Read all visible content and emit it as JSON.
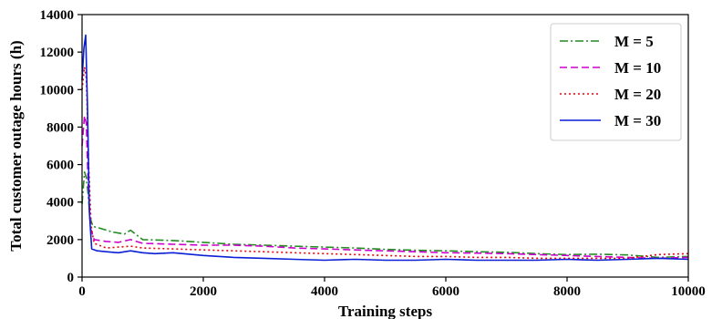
{
  "chart_data": {
    "type": "line",
    "title": "",
    "xlabel": "Training steps",
    "ylabel": "Total customer outage hours (h)",
    "xlim": [
      0,
      10000
    ],
    "ylim": [
      0,
      14000
    ],
    "xticks": [
      0,
      2000,
      4000,
      6000,
      8000,
      10000
    ],
    "yticks": [
      0,
      2000,
      4000,
      6000,
      8000,
      10000,
      12000,
      14000
    ],
    "grid": false,
    "legend_position": "top-right",
    "series": [
      {
        "name": "M = 5",
        "color": "#228B22",
        "dash": "dashdot",
        "points": [
          [
            0,
            3900
          ],
          [
            40,
            5600
          ],
          [
            70,
            5300
          ],
          [
            100,
            4400
          ],
          [
            130,
            3200
          ],
          [
            180,
            2700
          ],
          [
            300,
            2600
          ],
          [
            500,
            2400
          ],
          [
            700,
            2300
          ],
          [
            800,
            2500
          ],
          [
            1000,
            2000
          ],
          [
            1500,
            1950
          ],
          [
            2000,
            1850
          ],
          [
            2500,
            1750
          ],
          [
            3000,
            1700
          ],
          [
            3500,
            1650
          ],
          [
            4000,
            1600
          ],
          [
            4500,
            1550
          ],
          [
            5000,
            1480
          ],
          [
            5500,
            1430
          ],
          [
            6000,
            1400
          ],
          [
            6500,
            1350
          ],
          [
            7000,
            1320
          ],
          [
            7500,
            1250
          ],
          [
            8000,
            1200
          ],
          [
            8500,
            1220
          ],
          [
            9000,
            1180
          ],
          [
            9500,
            1050
          ],
          [
            10000,
            1100
          ]
        ]
      },
      {
        "name": "M = 10",
        "color": "#CC00CC",
        "dash": "dashed",
        "points": [
          [
            0,
            7000
          ],
          [
            40,
            8600
          ],
          [
            70,
            8200
          ],
          [
            100,
            5000
          ],
          [
            140,
            2600
          ],
          [
            200,
            2000
          ],
          [
            400,
            1900
          ],
          [
            600,
            1850
          ],
          [
            800,
            2000
          ],
          [
            1000,
            1800
          ],
          [
            1500,
            1750
          ],
          [
            2000,
            1700
          ],
          [
            2500,
            1700
          ],
          [
            3000,
            1650
          ],
          [
            3500,
            1550
          ],
          [
            4000,
            1500
          ],
          [
            4500,
            1450
          ],
          [
            5000,
            1400
          ],
          [
            5500,
            1350
          ],
          [
            6000,
            1300
          ],
          [
            6500,
            1280
          ],
          [
            7000,
            1250
          ],
          [
            7500,
            1200
          ],
          [
            8000,
            1150
          ],
          [
            8500,
            1100
          ],
          [
            9000,
            1050
          ],
          [
            9500,
            1000
          ],
          [
            10000,
            1050
          ]
        ]
      },
      {
        "name": "M = 20",
        "color": "#E8000B",
        "dash": "dotted",
        "points": [
          [
            0,
            10000
          ],
          [
            40,
            11200
          ],
          [
            70,
            10600
          ],
          [
            110,
            6000
          ],
          [
            150,
            2700
          ],
          [
            200,
            1800
          ],
          [
            400,
            1550
          ],
          [
            600,
            1600
          ],
          [
            800,
            1650
          ],
          [
            1000,
            1550
          ],
          [
            1500,
            1500
          ],
          [
            2000,
            1450
          ],
          [
            2500,
            1400
          ],
          [
            3000,
            1350
          ],
          [
            3500,
            1300
          ],
          [
            4000,
            1250
          ],
          [
            4500,
            1200
          ],
          [
            5000,
            1150
          ],
          [
            5500,
            1100
          ],
          [
            6000,
            1100
          ],
          [
            6500,
            1050
          ],
          [
            7000,
            1050
          ],
          [
            7500,
            1000
          ],
          [
            8000,
            1000
          ],
          [
            8500,
            1000
          ],
          [
            9000,
            1000
          ],
          [
            9500,
            1200
          ],
          [
            10000,
            1250
          ]
        ]
      },
      {
        "name": "M = 30",
        "color": "#0A1FD6",
        "dash": "solid",
        "points": [
          [
            0,
            10500
          ],
          [
            30,
            12200
          ],
          [
            60,
            12900
          ],
          [
            90,
            9000
          ],
          [
            120,
            3500
          ],
          [
            160,
            1500
          ],
          [
            250,
            1400
          ],
          [
            400,
            1350
          ],
          [
            600,
            1300
          ],
          [
            800,
            1400
          ],
          [
            1000,
            1300
          ],
          [
            1200,
            1250
          ],
          [
            1500,
            1300
          ],
          [
            2000,
            1150
          ],
          [
            2500,
            1050
          ],
          [
            3000,
            1000
          ],
          [
            3500,
            950
          ],
          [
            4000,
            900
          ],
          [
            4500,
            950
          ],
          [
            5000,
            900
          ],
          [
            5500,
            900
          ],
          [
            6000,
            950
          ],
          [
            6500,
            900
          ],
          [
            7000,
            900
          ],
          [
            7500,
            900
          ],
          [
            8000,
            950
          ],
          [
            8500,
            900
          ],
          [
            9000,
            950
          ],
          [
            9500,
            1000
          ],
          [
            10000,
            950
          ]
        ]
      }
    ]
  }
}
